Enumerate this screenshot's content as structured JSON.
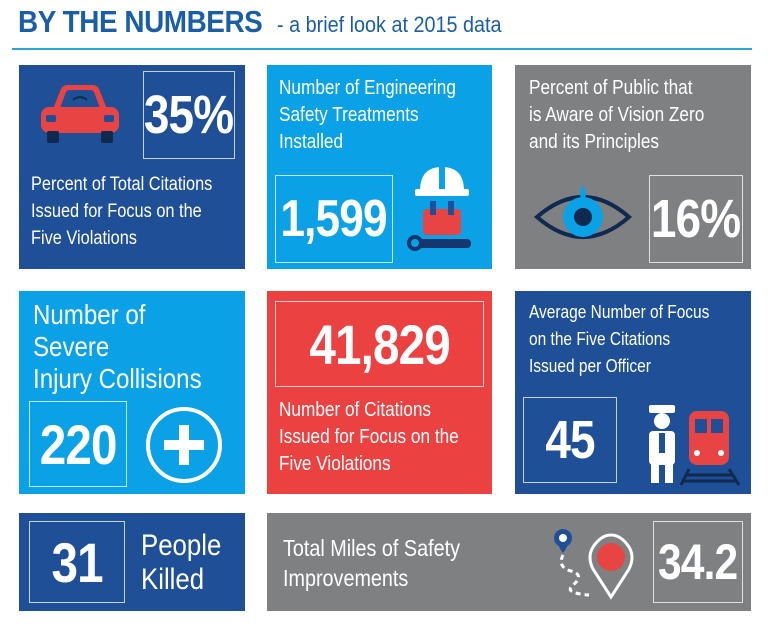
{
  "header": {
    "title": "BY THE NUMBERS",
    "subtitle": "- a brief look at 2015 data"
  },
  "tiles": {
    "citations_pct": {
      "value": "35%",
      "label_lines": [
        "Percent of Total Citations",
        "Issued for Focus on the",
        "Five Violations"
      ],
      "icon": "car-icon"
    },
    "engineering": {
      "value": "1,599",
      "label_lines": [
        "Number of Engineering",
        "Safety Treatments",
        "Installed"
      ],
      "icon": "worker-icon"
    },
    "public_aware": {
      "value": "16%",
      "label_lines": [
        "Percent of Public that",
        "is Aware of Vision Zero",
        "and its Principles"
      ],
      "icon": "eye-icon"
    },
    "severe_injury": {
      "value": "220",
      "label_lines": [
        "Number of",
        "Severe",
        "Injury Collisions"
      ],
      "icon": "plus-icon"
    },
    "citations_total": {
      "value": "41,829",
      "label_lines": [
        "Number of Citations",
        "Issued for Focus on the",
        "Five Violations"
      ]
    },
    "per_officer": {
      "value": "45",
      "label_lines": [
        "Average Number of Focus",
        "on the Five Citations",
        "Issued per Officer"
      ],
      "icon": "officer-train-icon"
    },
    "killed": {
      "value": "31",
      "label_lines": [
        "People",
        "Killed"
      ]
    },
    "miles": {
      "value": "34.2",
      "label_lines": [
        "Total Miles of Safety",
        "Improvements"
      ],
      "icon": "map-route-icon"
    }
  },
  "colors": {
    "navy": "#1f4f96",
    "cyan": "#0aa1e6",
    "gray": "#7f8082",
    "red": "#ec4141",
    "header": "#1a5ea8"
  }
}
